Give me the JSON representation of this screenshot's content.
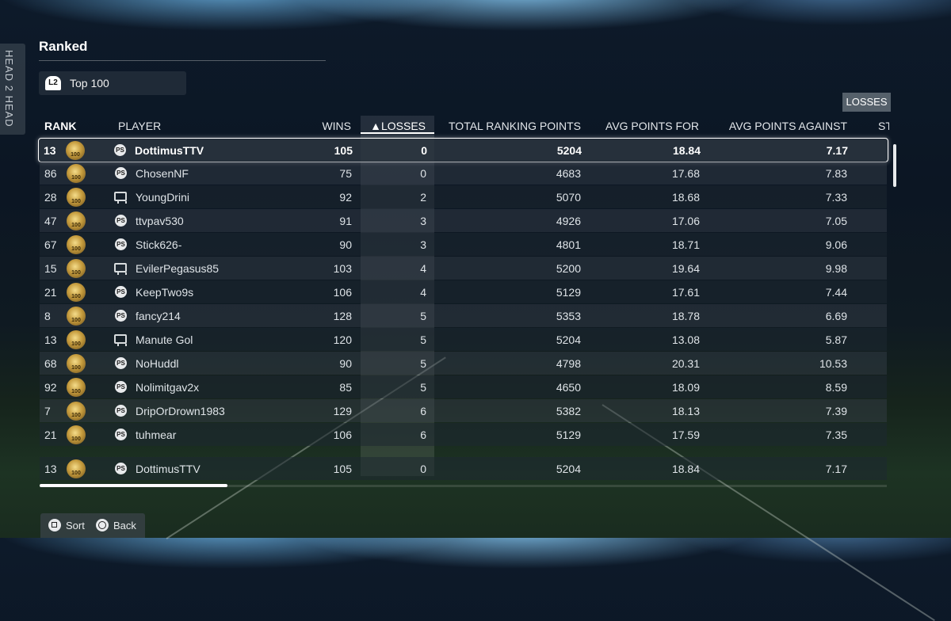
{
  "side_tab": {
    "label": "HEAD 2 HEAD"
  },
  "page": {
    "title": "Ranked"
  },
  "filter": {
    "button_icon": "L2",
    "label": "Top 100"
  },
  "sort_chip": {
    "label": "LOSSES"
  },
  "columns": {
    "rank": "RANK",
    "player": "PLAYER",
    "wins": "WINS",
    "losses": "▲LOSSES",
    "total_ranking_points": "TOTAL RANKING POINTS",
    "avg_points_for": "AVG POINTS FOR",
    "avg_points_against": "AVG POINTS AGAINST",
    "next_cut": "ST"
  },
  "rows": [
    {
      "rank": "13",
      "platform": "playstation-icon",
      "player": "DottimusTTV",
      "wins": "105",
      "losses": "0",
      "trp": "5204",
      "apf": "18.84",
      "apa": "7.17"
    },
    {
      "rank": "86",
      "platform": "playstation-icon",
      "player": "ChosenNF",
      "wins": "75",
      "losses": "0",
      "trp": "4683",
      "apf": "17.68",
      "apa": "7.83"
    },
    {
      "rank": "28",
      "platform": "xbox-icon",
      "player": "YoungDrini",
      "wins": "92",
      "losses": "2",
      "trp": "5070",
      "apf": "18.68",
      "apa": "7.33"
    },
    {
      "rank": "47",
      "platform": "playstation-icon",
      "player": "ttvpav530",
      "wins": "91",
      "losses": "3",
      "trp": "4926",
      "apf": "17.06",
      "apa": "7.05"
    },
    {
      "rank": "67",
      "platform": "playstation-icon",
      "player": "Stick626-",
      "wins": "90",
      "losses": "3",
      "trp": "4801",
      "apf": "18.71",
      "apa": "9.06"
    },
    {
      "rank": "15",
      "platform": "xbox-icon",
      "player": "EvilerPegasus85",
      "wins": "103",
      "losses": "4",
      "trp": "5200",
      "apf": "19.64",
      "apa": "9.98"
    },
    {
      "rank": "21",
      "platform": "playstation-icon",
      "player": "KeepTwo9s",
      "wins": "106",
      "losses": "4",
      "trp": "5129",
      "apf": "17.61",
      "apa": "7.44"
    },
    {
      "rank": "8",
      "platform": "playstation-icon",
      "player": "fancy214",
      "wins": "128",
      "losses": "5",
      "trp": "5353",
      "apf": "18.78",
      "apa": "6.69"
    },
    {
      "rank": "13",
      "platform": "xbox-icon",
      "player": "Manute Gol",
      "wins": "120",
      "losses": "5",
      "trp": "5204",
      "apf": "13.08",
      "apa": "5.87"
    },
    {
      "rank": "68",
      "platform": "playstation-icon",
      "player": "NoHuddl",
      "wins": "90",
      "losses": "5",
      "trp": "4798",
      "apf": "20.31",
      "apa": "10.53"
    },
    {
      "rank": "92",
      "platform": "playstation-icon",
      "player": "Nolimitgav2x",
      "wins": "85",
      "losses": "5",
      "trp": "4650",
      "apf": "18.09",
      "apa": "8.59"
    },
    {
      "rank": "7",
      "platform": "playstation-icon",
      "player": "DripOrDrown1983",
      "wins": "129",
      "losses": "6",
      "trp": "5382",
      "apf": "18.13",
      "apa": "7.39"
    },
    {
      "rank": "21",
      "platform": "playstation-icon",
      "player": "tuhmear",
      "wins": "106",
      "losses": "6",
      "trp": "5129",
      "apf": "17.59",
      "apa": "7.35"
    }
  ],
  "my_row": {
    "rank": "13",
    "platform": "playstation-icon",
    "player": "DottimusTTV",
    "wins": "105",
    "losses": "0",
    "trp": "5204",
    "apf": "18.84",
    "apa": "7.17"
  },
  "footer": {
    "sort_label": "Sort",
    "back_label": "Back"
  },
  "colors": {
    "selected_border": "#ffffff",
    "badge_gold": "#c49a3c"
  }
}
